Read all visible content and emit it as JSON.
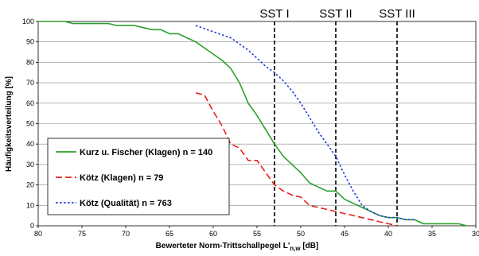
{
  "chart_data": {
    "type": "line",
    "title": "",
    "xlabel": "Bewerteter Norm-Trittschallpegel L'",
    "xlabel_subscript": "n,w",
    "xlabel_unit": " [dB]",
    "ylabel": "Häufigkeitsverteilung [%]",
    "xlim": [
      80,
      30
    ],
    "ylim": [
      0,
      100
    ],
    "x_reversed": true,
    "x_ticks": [
      80,
      75,
      70,
      65,
      60,
      55,
      50,
      45,
      40,
      35,
      30
    ],
    "y_ticks": [
      0,
      10,
      20,
      30,
      40,
      50,
      60,
      70,
      80,
      90,
      100
    ],
    "grid": "horizontal",
    "legend_position": "lower-left",
    "reference_lines": [
      {
        "label": "SST I",
        "x": 53
      },
      {
        "label": "SST II",
        "x": 46
      },
      {
        "label": "SST III",
        "x": 39
      }
    ],
    "series": [
      {
        "name": "Kurz u. Fischer (Klagen) n = 140",
        "color": "#2ca02c",
        "style": "solid",
        "points": [
          [
            80,
            100
          ],
          [
            77,
            100
          ],
          [
            76,
            99
          ],
          [
            72,
            99
          ],
          [
            71,
            98
          ],
          [
            69,
            98
          ],
          [
            68,
            97
          ],
          [
            67,
            96
          ],
          [
            66,
            96
          ],
          [
            65,
            94
          ],
          [
            64,
            94
          ],
          [
            63,
            92
          ],
          [
            62,
            90
          ],
          [
            61,
            87
          ],
          [
            60,
            84
          ],
          [
            59,
            81
          ],
          [
            58,
            77
          ],
          [
            57,
            70
          ],
          [
            56,
            60
          ],
          [
            55,
            54
          ],
          [
            54,
            47
          ],
          [
            53,
            40
          ],
          [
            52,
            34
          ],
          [
            51,
            30
          ],
          [
            50,
            26
          ],
          [
            49,
            21
          ],
          [
            48,
            19
          ],
          [
            47,
            17
          ],
          [
            46,
            17
          ],
          [
            45,
            13
          ],
          [
            44,
            11
          ],
          [
            43,
            9
          ],
          [
            42,
            7
          ],
          [
            41,
            5
          ],
          [
            40,
            4
          ],
          [
            39,
            4
          ],
          [
            38,
            3
          ],
          [
            37,
            3
          ],
          [
            36,
            1
          ],
          [
            35,
            1
          ],
          [
            34,
            1
          ],
          [
            33,
            1
          ],
          [
            32,
            1
          ],
          [
            31,
            0
          ]
        ]
      },
      {
        "name": "Kötz (Klagen) n = 79",
        "color": "#e8201a",
        "style": "dashed",
        "points": [
          [
            62,
            65
          ],
          [
            61,
            64
          ],
          [
            60,
            56
          ],
          [
            59,
            49
          ],
          [
            58,
            40
          ],
          [
            57,
            38
          ],
          [
            56,
            32
          ],
          [
            55,
            32
          ],
          [
            54,
            26
          ],
          [
            53,
            20
          ],
          [
            52,
            17
          ],
          [
            51,
            15
          ],
          [
            50,
            14
          ],
          [
            49,
            10
          ],
          [
            48,
            9
          ],
          [
            47,
            8
          ],
          [
            46,
            7
          ],
          [
            45,
            6
          ],
          [
            44,
            5
          ],
          [
            43,
            4
          ],
          [
            42,
            3
          ],
          [
            41,
            2
          ],
          [
            40,
            1
          ],
          [
            39,
            0
          ]
        ]
      },
      {
        "name": "Kötz (Qualität) n = 763",
        "color": "#1f3ad8",
        "style": "dotted",
        "points": [
          [
            62,
            98
          ],
          [
            60,
            95
          ],
          [
            58,
            92
          ],
          [
            57,
            89
          ],
          [
            56,
            86
          ],
          [
            55,
            82
          ],
          [
            54,
            78
          ],
          [
            53,
            75
          ],
          [
            52,
            71
          ],
          [
            51,
            66
          ],
          [
            50,
            60
          ],
          [
            49,
            53
          ],
          [
            48,
            46
          ],
          [
            47,
            40
          ],
          [
            46,
            34
          ],
          [
            45,
            25
          ],
          [
            44,
            17
          ],
          [
            43,
            10
          ],
          [
            42,
            7
          ],
          [
            41,
            5
          ],
          [
            40,
            4
          ],
          [
            39,
            4
          ],
          [
            38,
            3
          ],
          [
            37,
            3
          ]
        ]
      }
    ]
  }
}
